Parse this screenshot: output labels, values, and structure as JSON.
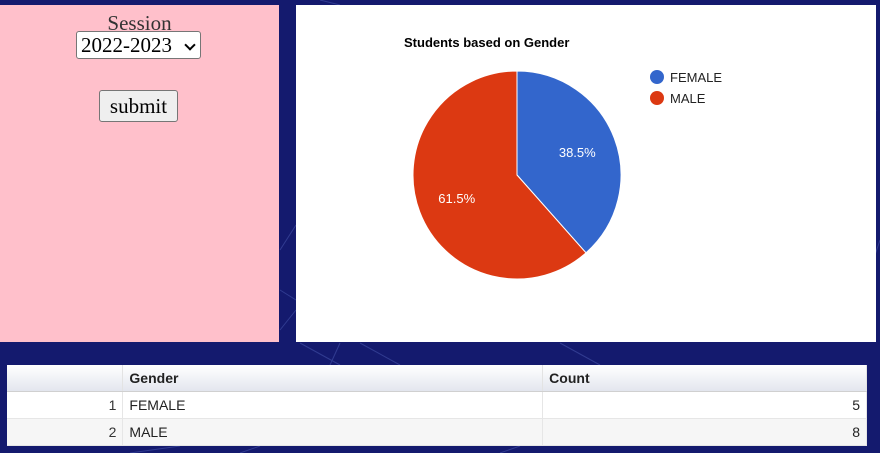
{
  "session": {
    "label": "Session",
    "selected": "2022-2023",
    "submit_label": "submit"
  },
  "colors": {
    "background": "#141a6e",
    "left_panel": "#ffc0cb",
    "female": "#3366cc",
    "male": "#dc3912"
  },
  "chart_data": {
    "type": "pie",
    "title": "Students based on Gender",
    "categories": [
      "FEMALE",
      "MALE"
    ],
    "values": [
      5,
      8
    ],
    "slice_labels": [
      "38.5%",
      "61.5%"
    ],
    "colors": [
      "#3366cc",
      "#dc3912"
    ],
    "legend": "right"
  },
  "table": {
    "headers": [
      "",
      "Gender",
      "Count"
    ],
    "rows": [
      {
        "num": "1",
        "gender": "FEMALE",
        "count": "5"
      },
      {
        "num": "2",
        "gender": "MALE",
        "count": "8"
      }
    ]
  }
}
